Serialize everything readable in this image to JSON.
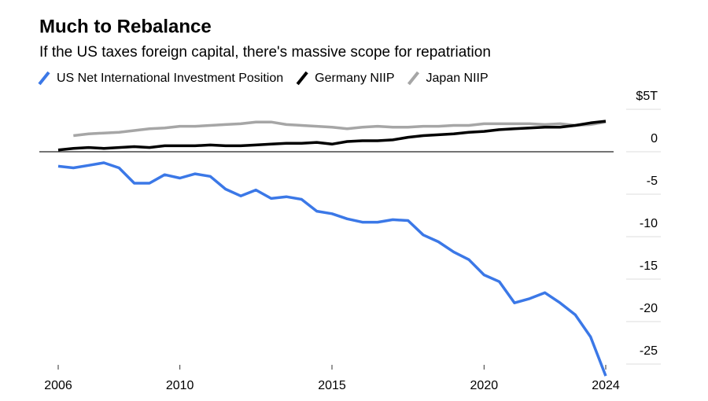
{
  "chart_data": {
    "type": "line",
    "title": "Much to Rebalance",
    "subtitle": "If the US taxes foreign capital, there's massive scope for repatriation",
    "x": [
      2006,
      2006.5,
      2007,
      2007.5,
      2008,
      2008.5,
      2009,
      2009.5,
      2010,
      2010.5,
      2011,
      2011.5,
      2012,
      2012.5,
      2013,
      2013.5,
      2014,
      2014.5,
      2015,
      2015.5,
      2016,
      2016.5,
      2017,
      2017.5,
      2018,
      2018.5,
      2019,
      2019.5,
      2020,
      2020.5,
      2021,
      2021.5,
      2022,
      2022.5,
      2023,
      2023.5,
      2024
    ],
    "series": [
      {
        "name": "US Net International Investment Position",
        "color": "#3b78e7",
        "values": [
          -1.7,
          -1.9,
          -1.6,
          -1.3,
          -1.9,
          -3.7,
          -3.7,
          -2.7,
          -3.1,
          -2.6,
          -2.9,
          -4.4,
          -5.2,
          -4.5,
          -5.5,
          -5.3,
          -5.6,
          -7.0,
          -7.3,
          -7.9,
          -8.3,
          -8.3,
          -8.0,
          -8.1,
          -9.8,
          -10.6,
          -11.8,
          -12.7,
          -14.5,
          -15.3,
          -17.8,
          -17.3,
          -16.6,
          -17.8,
          -19.2,
          -21.8,
          -26.4
        ]
      },
      {
        "name": "Germany NIIP",
        "color": "#000000",
        "values": [
          0.2,
          0.4,
          0.5,
          0.4,
          0.5,
          0.6,
          0.5,
          0.7,
          0.7,
          0.7,
          0.8,
          0.7,
          0.7,
          0.8,
          0.9,
          1.0,
          1.0,
          1.1,
          0.9,
          1.2,
          1.3,
          1.3,
          1.4,
          1.7,
          1.9,
          2.0,
          2.1,
          2.3,
          2.4,
          2.6,
          2.7,
          2.8,
          2.9,
          2.9,
          3.1,
          3.4,
          3.6
        ]
      },
      {
        "name": "Japan NIIP",
        "color": "#a6a6a6",
        "values": [
          null,
          1.9,
          2.1,
          2.2,
          2.3,
          2.5,
          2.7,
          2.8,
          3.0,
          3.0,
          3.1,
          3.2,
          3.3,
          3.5,
          3.5,
          3.2,
          3.1,
          3.0,
          2.9,
          2.7,
          2.9,
          3.0,
          2.9,
          2.9,
          3.0,
          3.0,
          3.1,
          3.1,
          3.3,
          3.3,
          3.3,
          3.3,
          3.2,
          3.3,
          3.1,
          3.2,
          3.5
        ]
      }
    ],
    "xlim": [
      2006,
      2024
    ],
    "xticks": [
      2006,
      2010,
      2015,
      2020,
      2024
    ],
    "ylim": [
      -27,
      5
    ],
    "yticks": [
      {
        "value": 5,
        "label": "$5T"
      },
      0,
      -5,
      -10,
      -15,
      -20,
      -25
    ]
  }
}
